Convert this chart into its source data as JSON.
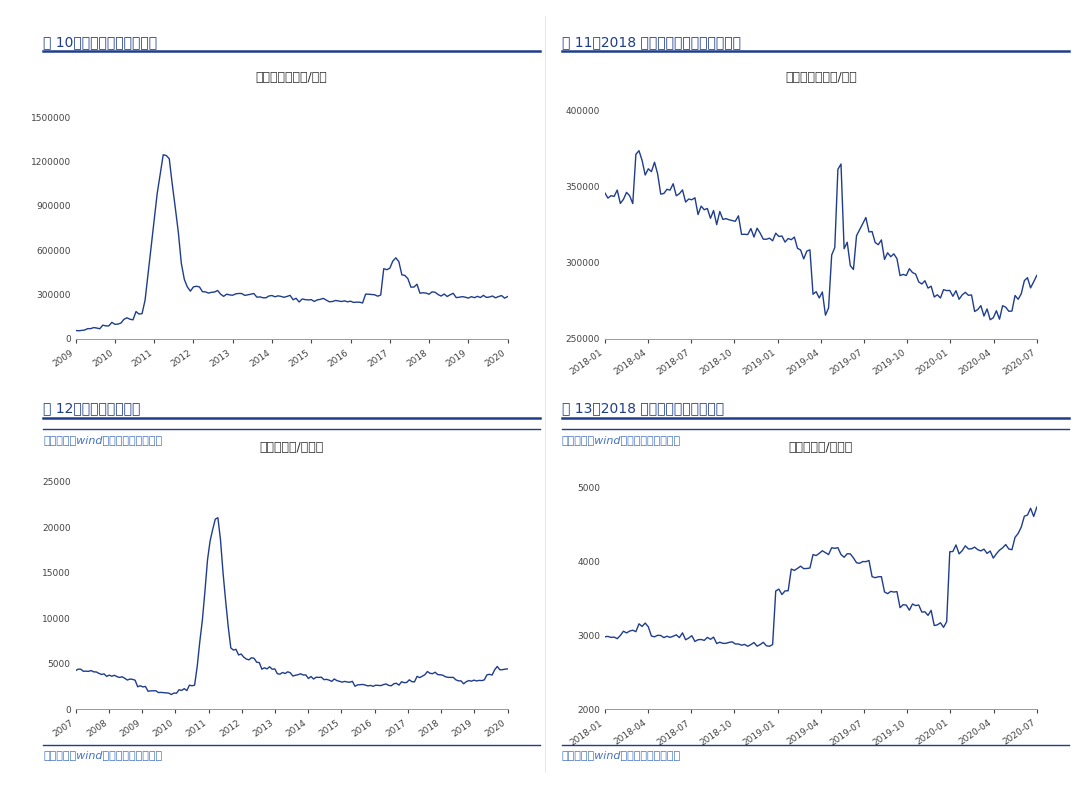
{
  "fig10_title": "图 10：镨钕氧化物价格变化",
  "fig11_title": "图 11：2018 年以来镨钕氧化物价格变化",
  "fig12_title": "图 12：氧化钕价格变化",
  "fig13_title": "图 13：2018 年以来氧化钕价格变化",
  "fig10_subtitle": "镨钕氧化物（元/吨）",
  "fig11_subtitle": "镨钕氧化物（元/吨）",
  "fig12_subtitle": "氧化钕（元/千克）",
  "fig13_subtitle": "氧化钕（元/千克）",
  "source_text": "资料来源：wind，安信证券研究中心",
  "line_color": "#1F3D8C",
  "title_color": "#1F3D8C",
  "source_color": "#4472C4",
  "header_line_color": "#1F3D8C",
  "background_color": "#FFFFFF",
  "fig10_xticks": [
    "2009",
    "2010",
    "2011",
    "2012",
    "2013",
    "2014",
    "2015",
    "2016",
    "2017",
    "2018",
    "2019",
    "2020"
  ],
  "fig10_yticks": [
    0,
    300000,
    600000,
    900000,
    1200000,
    1500000
  ],
  "fig11_xticks": [
    "2018-01",
    "2018-04",
    "2018-07",
    "2018-10",
    "2019-01",
    "2019-04",
    "2019-07",
    "2019-10",
    "2020-01",
    "2020-04",
    "2020-07"
  ],
  "fig11_yticks": [
    250000,
    300000,
    350000,
    400000
  ],
  "fig12_xticks": [
    "2007",
    "2008",
    "2009",
    "2010",
    "2011",
    "2012",
    "2013",
    "2014",
    "2015",
    "2016",
    "2017",
    "2018",
    "2019",
    "2020"
  ],
  "fig12_yticks": [
    0,
    5000,
    10000,
    15000,
    20000,
    25000
  ],
  "fig13_xticks": [
    "2018-01",
    "2018-04",
    "2018-07",
    "2018-10",
    "2019-01",
    "2019-04",
    "2019-07",
    "2019-10",
    "2020-01",
    "2020-04",
    "2020-07"
  ],
  "fig13_yticks": [
    2000,
    3000,
    4000,
    5000
  ]
}
